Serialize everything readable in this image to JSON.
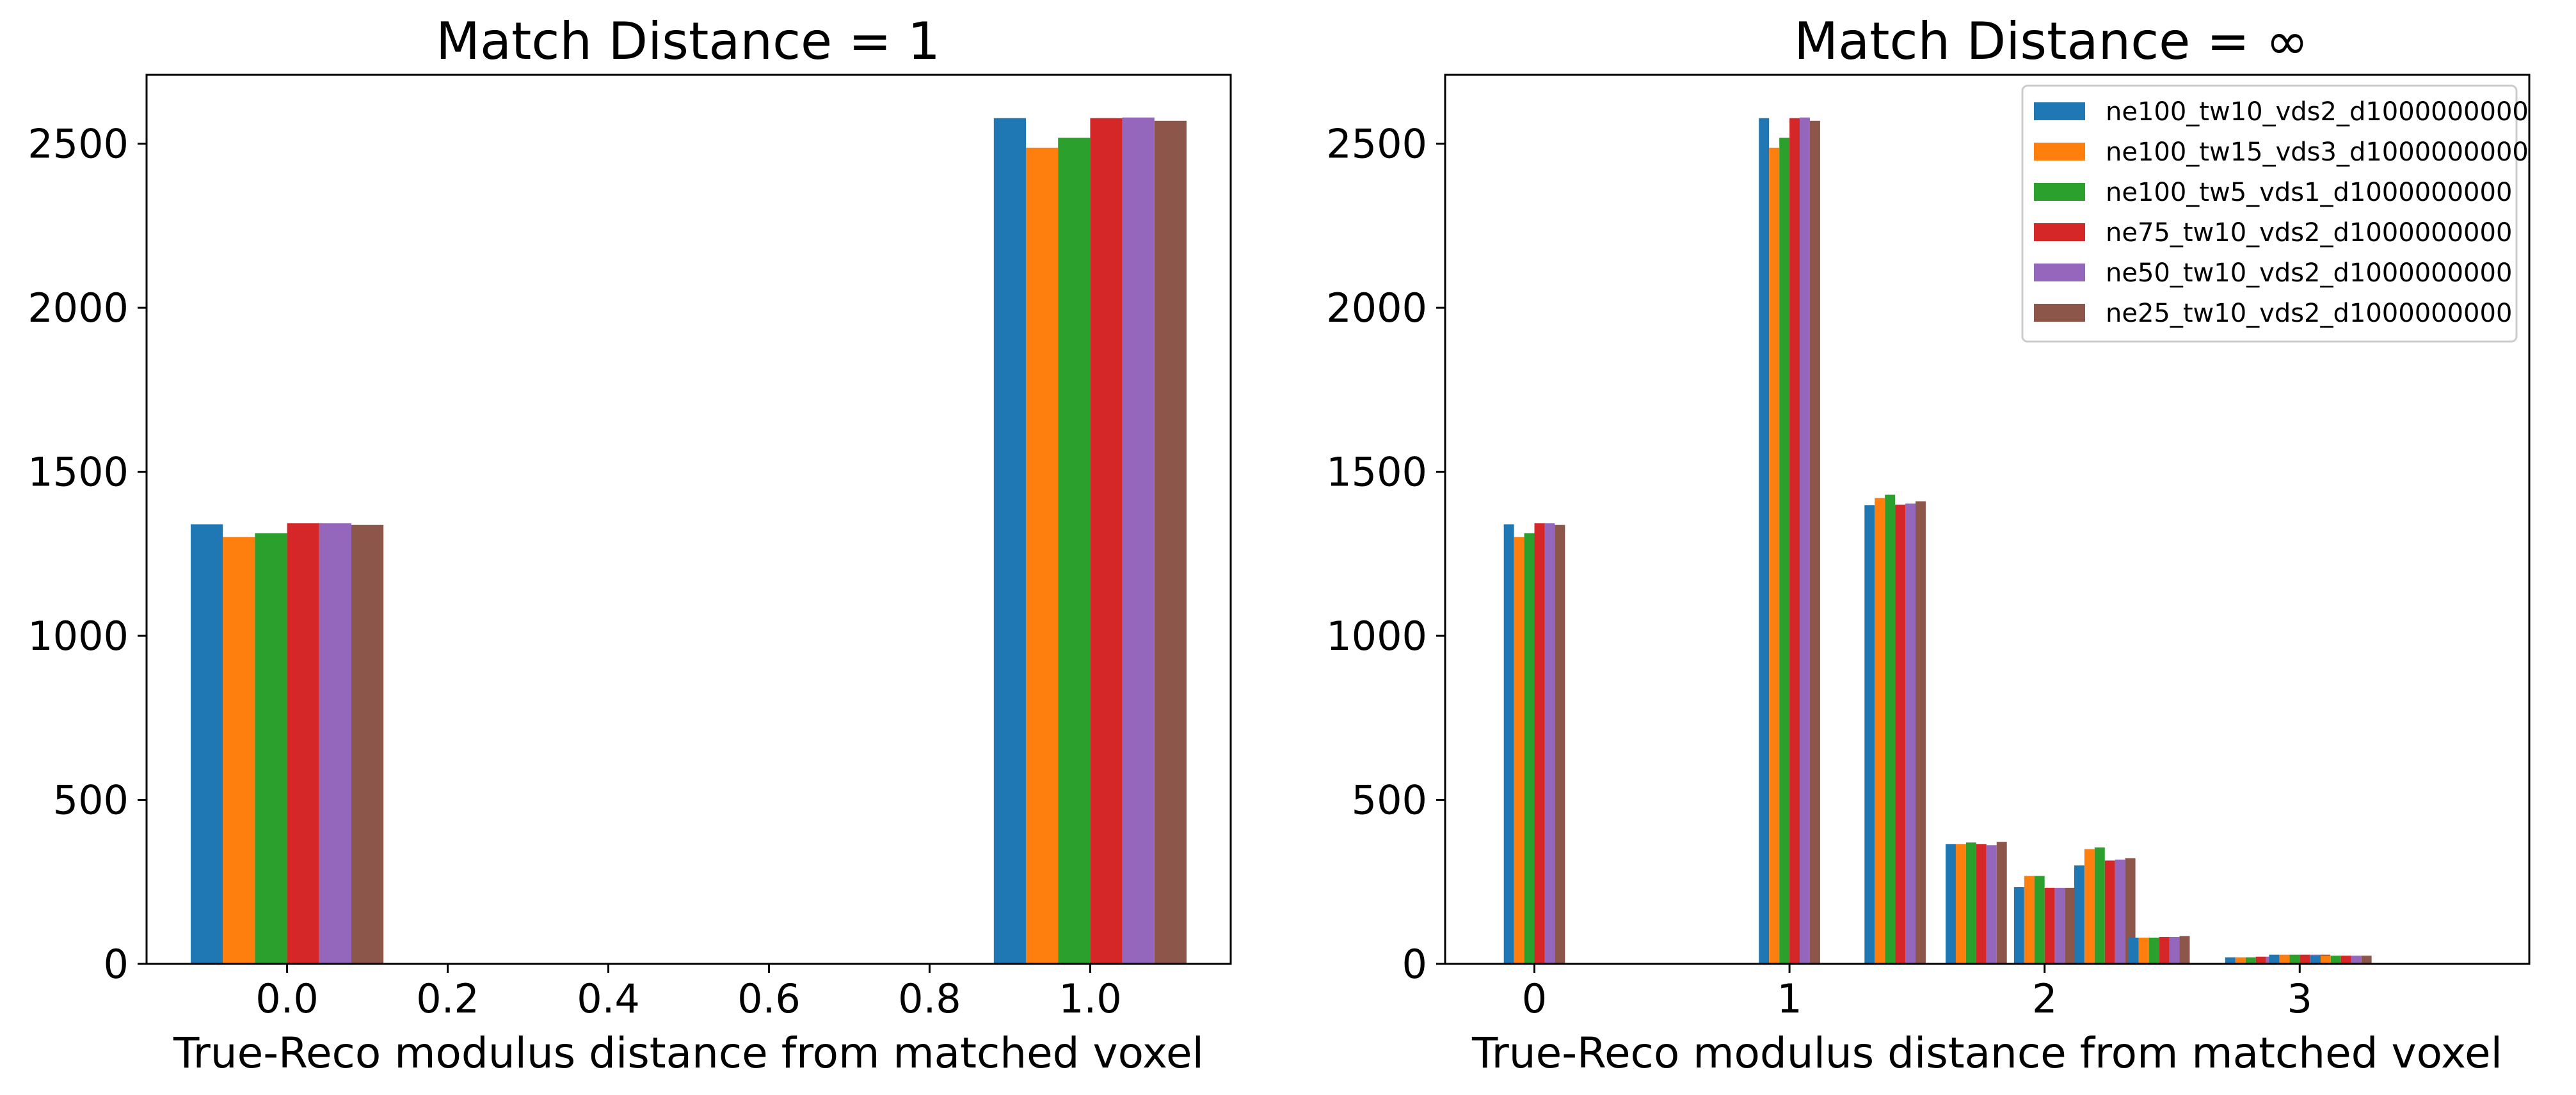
{
  "colors": [
    "#1f77b4",
    "#ff7f0e",
    "#2ca02c",
    "#d62728",
    "#9467bd",
    "#8c564b"
  ],
  "series_names": [
    "ne100_tw10_vds2_d1000000000",
    "ne100_tw15_vds3_d1000000000",
    "ne100_tw5_vds1_d1000000000",
    "ne75_tw10_vds2_d1000000000",
    "ne50_tw10_vds2_d1000000000",
    "ne25_tw10_vds2_d1000000000"
  ],
  "chart_data": [
    {
      "type": "bar",
      "title": "Match Distance = 1",
      "xlabel": "True-Reco modulus distance from matched voxel",
      "ylabel": "",
      "xlim": [
        -0.175,
        1.175
      ],
      "ylim": [
        0,
        2710
      ],
      "xticks": [
        0.0,
        0.2,
        0.4,
        0.6,
        0.8,
        1.0
      ],
      "xtick_labels": [
        "0.0",
        "0.2",
        "0.4",
        "0.6",
        "0.8",
        "1.0"
      ],
      "yticks": [
        0,
        500,
        1000,
        1500,
        2000,
        2500
      ],
      "ytick_labels": [
        "0",
        "500",
        "1000",
        "1500",
        "2000",
        "2500"
      ],
      "bar_group_centers": [
        0.0,
        1.0
      ],
      "bar_group_width": 0.24,
      "series": [
        {
          "name": "ne100_tw10_vds2_d1000000000",
          "values": [
            1340,
            2578
          ]
        },
        {
          "name": "ne100_tw15_vds3_d1000000000",
          "values": [
            1301,
            2488
          ]
        },
        {
          "name": "ne100_tw5_vds1_d1000000000",
          "values": [
            1313,
            2518
          ]
        },
        {
          "name": "ne75_tw10_vds2_d1000000000",
          "values": [
            1343,
            2578
          ]
        },
        {
          "name": "ne50_tw10_vds2_d1000000000",
          "values": [
            1343,
            2580
          ]
        },
        {
          "name": "ne25_tw10_vds2_d1000000000",
          "values": [
            1338,
            2570
          ]
        }
      ],
      "legend": "none"
    },
    {
      "type": "bar",
      "title": "Match Distance = ∞",
      "xlabel": "True-Reco modulus distance from matched voxel",
      "ylabel": "",
      "xlim": [
        -0.35,
        3.9
      ],
      "ylim": [
        0,
        2710
      ],
      "xticks": [
        0,
        1,
        2,
        3
      ],
      "xtick_labels": [
        "0",
        "1",
        "2",
        "3"
      ],
      "yticks": [
        0,
        500,
        1000,
        1500,
        2000,
        2500
      ],
      "ytick_labels": [
        "0",
        "500",
        "1000",
        "1500",
        "2000",
        "2500"
      ],
      "bar_group_centers": [
        0.0,
        1.0,
        1.414,
        1.732,
        2.0,
        2.236,
        2.449,
        2.828,
        3.0,
        3.162
      ],
      "bar_group_width": 0.24,
      "series": [
        {
          "name": "ne100_tw10_vds2_d1000000000",
          "values": [
            1340,
            2578,
            1398,
            365,
            234,
            300,
            80,
            20,
            28,
            25
          ]
        },
        {
          "name": "ne100_tw15_vds3_d1000000000",
          "values": [
            1301,
            2488,
            1420,
            365,
            268,
            350,
            80,
            20,
            28,
            25
          ]
        },
        {
          "name": "ne100_tw5_vds1_d1000000000",
          "values": [
            1313,
            2518,
            1430,
            370,
            268,
            355,
            80,
            20,
            28,
            25
          ]
        },
        {
          "name": "ne75_tw10_vds2_d1000000000",
          "values": [
            1343,
            2578,
            1400,
            365,
            232,
            315,
            82,
            22,
            28,
            25
          ]
        },
        {
          "name": "ne50_tw10_vds2_d1000000000",
          "values": [
            1343,
            2580,
            1403,
            362,
            232,
            318,
            82,
            22,
            28,
            25
          ]
        },
        {
          "name": "ne25_tw10_vds2_d1000000000",
          "values": [
            1338,
            2570,
            1410,
            372,
            232,
            322,
            85,
            22,
            28,
            25
          ]
        }
      ],
      "legend": "top-right"
    }
  ]
}
